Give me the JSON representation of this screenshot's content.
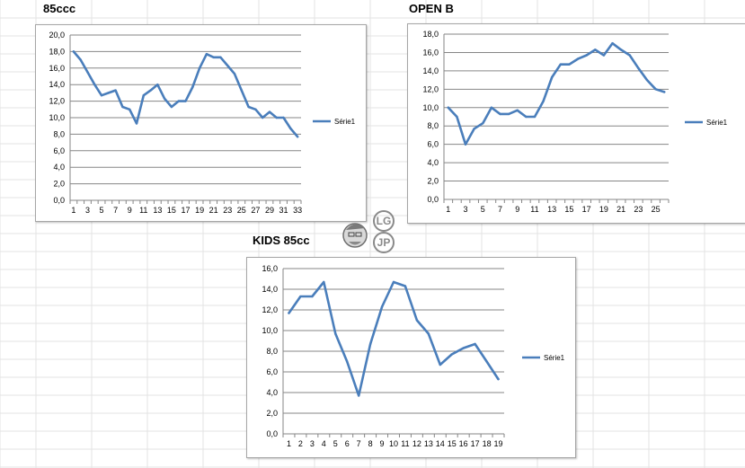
{
  "titles": {
    "c1": "85ccc",
    "c2": "OPEN B",
    "c3": "KIDS 85cc"
  },
  "logo": {
    "text_top": "LG",
    "text_bottom": "JP"
  },
  "colors": {
    "series": "#4a7ebb",
    "gridline": "#868686",
    "sheet_grid": "#e3e3e3",
    "box_border": "#a6a6a6"
  },
  "chart_data": [
    {
      "type": "line",
      "title": "85ccc",
      "x": [
        1,
        2,
        3,
        4,
        5,
        6,
        7,
        8,
        9,
        10,
        11,
        12,
        13,
        14,
        15,
        16,
        17,
        18,
        19,
        20,
        21,
        22,
        23,
        24,
        25,
        26,
        27,
        28,
        29,
        30,
        31,
        32,
        33
      ],
      "x_tick_labels": [
        "1",
        "3",
        "5",
        "7",
        "9",
        "11",
        "13",
        "15",
        "17",
        "19",
        "21",
        "23",
        "25",
        "27",
        "29",
        "31",
        "33"
      ],
      "series": [
        {
          "name": "Série1",
          "values": [
            18.0,
            17.0,
            15.5,
            14.0,
            12.7,
            13.0,
            13.3,
            11.3,
            11.0,
            9.3,
            12.7,
            13.3,
            14.0,
            12.3,
            11.3,
            12.0,
            12.0,
            13.7,
            16.0,
            17.7,
            17.3,
            17.3,
            16.3,
            15.3,
            13.3,
            11.3,
            11.0,
            10.0,
            10.7,
            10.0,
            10.0,
            8.7,
            7.7
          ]
        }
      ],
      "ylim": [
        0,
        20
      ],
      "y_ticks": [
        "0,0",
        "2,0",
        "4,0",
        "6,0",
        "8,0",
        "10,0",
        "12,0",
        "14,0",
        "16,0",
        "18,0",
        "20,0"
      ],
      "grid": true,
      "legend": "right"
    },
    {
      "type": "line",
      "title": "OPEN B",
      "x": [
        1,
        2,
        3,
        4,
        5,
        6,
        7,
        8,
        9,
        10,
        11,
        12,
        13,
        14,
        15,
        16,
        17,
        18,
        19,
        20,
        21,
        22,
        23,
        24,
        25,
        26
      ],
      "x_tick_labels": [
        "1",
        "3",
        "5",
        "7",
        "9",
        "11",
        "13",
        "15",
        "17",
        "19",
        "21",
        "23",
        "25"
      ],
      "series": [
        {
          "name": "Série1",
          "values": [
            10.0,
            9.0,
            6.0,
            7.7,
            8.3,
            10.0,
            9.3,
            9.3,
            9.7,
            9.0,
            9.0,
            10.7,
            13.3,
            14.7,
            14.7,
            15.3,
            15.7,
            16.3,
            15.7,
            17.0,
            16.3,
            15.7,
            14.3,
            13.0,
            12.0,
            11.7
          ]
        }
      ],
      "ylim": [
        0,
        18
      ],
      "y_ticks": [
        "0,0",
        "2,0",
        "4,0",
        "6,0",
        "8,0",
        "10,0",
        "12,0",
        "14,0",
        "16,0",
        "18,0"
      ],
      "grid": true,
      "legend": "right"
    },
    {
      "type": "line",
      "title": "KIDS 85cc",
      "x": [
        1,
        2,
        3,
        4,
        5,
        6,
        7,
        8,
        9,
        10,
        11,
        12,
        13,
        14,
        15,
        16,
        17,
        18,
        19
      ],
      "x_tick_labels": [
        "1",
        "2",
        "3",
        "4",
        "5",
        "6",
        "7",
        "8",
        "9",
        "10",
        "11",
        "12",
        "13",
        "14",
        "15",
        "16",
        "17",
        "18",
        "19"
      ],
      "series": [
        {
          "name": "Série1",
          "values": [
            11.7,
            13.3,
            13.3,
            14.7,
            9.7,
            7.0,
            3.7,
            8.7,
            12.3,
            14.7,
            14.3,
            11.0,
            9.7,
            6.7,
            7.7,
            8.3,
            8.7,
            7.0,
            5.3
          ]
        }
      ],
      "ylim": [
        0,
        16
      ],
      "y_ticks": [
        "0,0",
        "2,0",
        "4,0",
        "6,0",
        "8,0",
        "10,0",
        "12,0",
        "14,0",
        "16,0"
      ],
      "grid": true,
      "legend": "right"
    }
  ]
}
